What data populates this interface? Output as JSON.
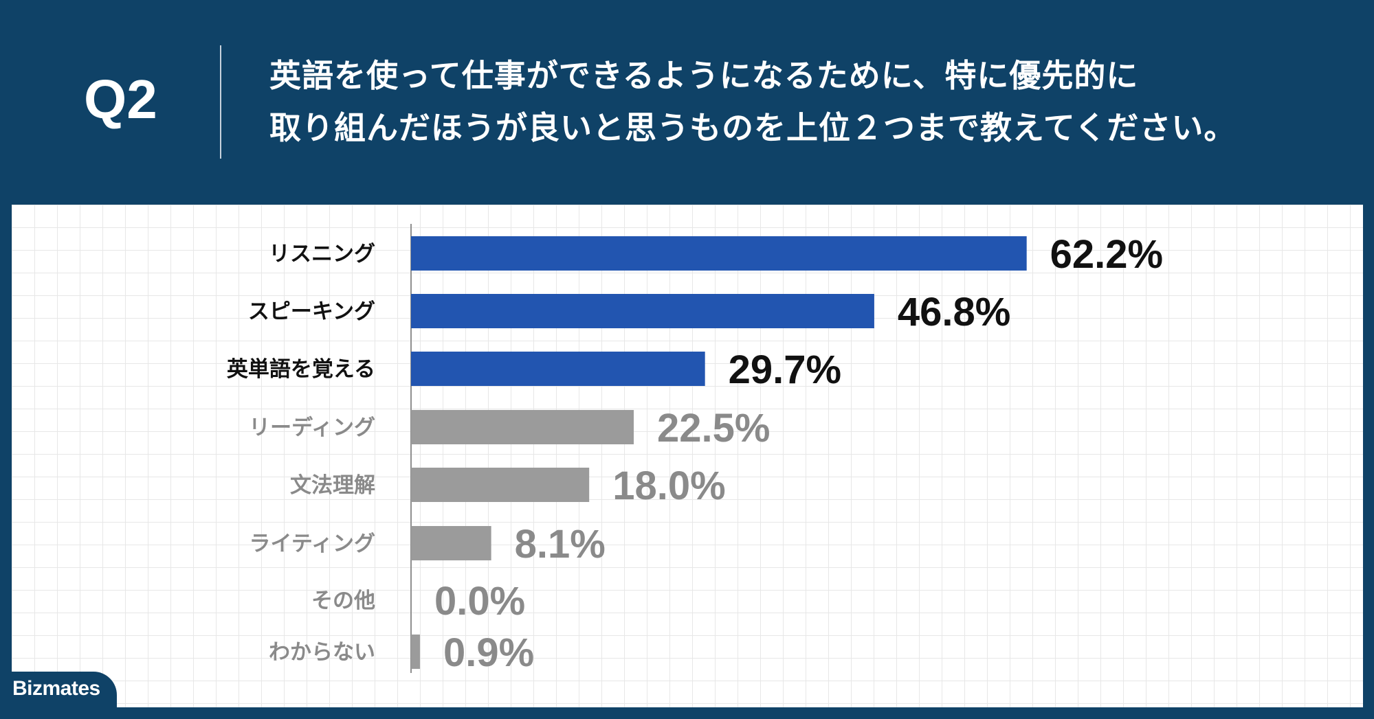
{
  "header": {
    "q_label": "Q2",
    "question_line1": "英語を使って仕事ができるようになるために、特に優先的に",
    "question_line2": "取り組んだほうが良いと思うものを上位２つまで教えてください。"
  },
  "brand": {
    "name": "Bizmates"
  },
  "colors": {
    "background": "#0f4267",
    "highlight_bar": "#2255b0",
    "muted_bar": "#9b9b9b",
    "highlight_text": "#111111",
    "muted_text": "#8a8a8a",
    "grid": "#e7e7e7"
  },
  "chart_data": {
    "type": "bar",
    "orientation": "horizontal",
    "categories": [
      "リスニング",
      "スピーキング",
      "英単語を覚える",
      "リーディング",
      "文法理解",
      "ライティング",
      "その他",
      "わからない"
    ],
    "values": [
      62.2,
      46.8,
      29.7,
      22.5,
      18.0,
      8.1,
      0.0,
      0.9
    ],
    "value_labels": [
      "62.2%",
      "46.8%",
      "29.7%",
      "22.5%",
      "18.0%",
      "8.1%",
      "0.0%",
      "0.9%"
    ],
    "highlighted": [
      true,
      true,
      true,
      false,
      false,
      false,
      false,
      false
    ],
    "unit": "%",
    "grid": true
  }
}
